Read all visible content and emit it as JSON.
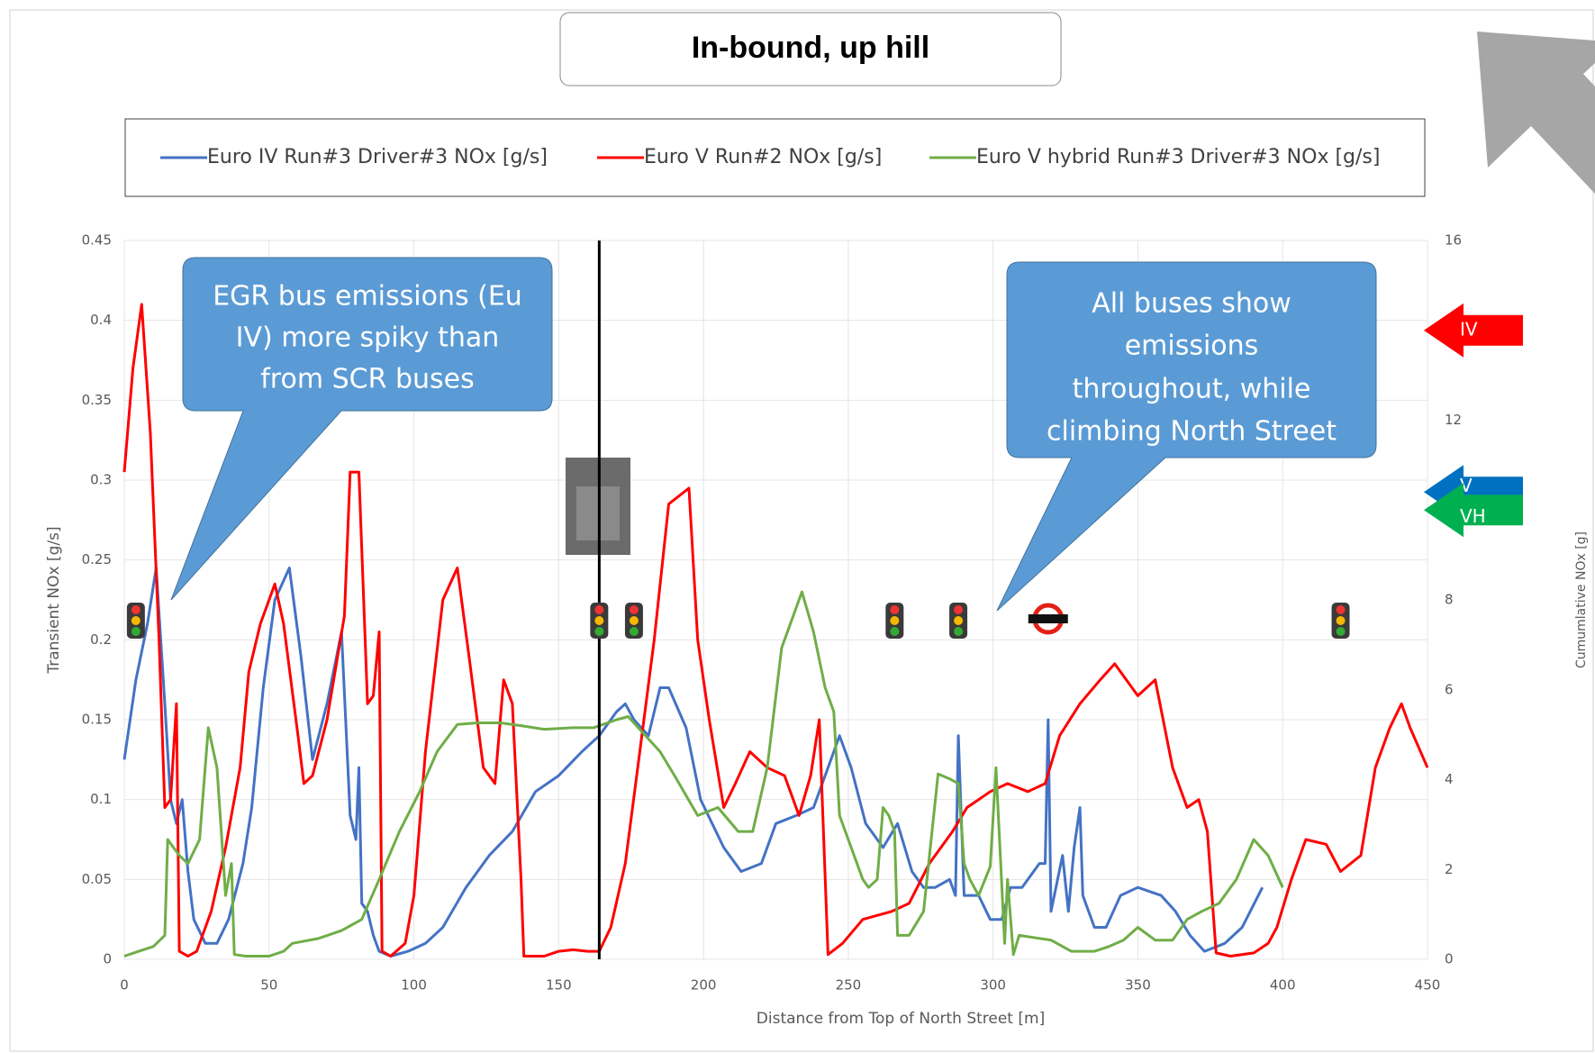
{
  "chart_data": {
    "type": "line",
    "title": "In-bound, up hill",
    "x_label": "Distance from Top of North Street [m]",
    "y_label": "Transient NOx [g/s]",
    "y2_label": "Cumumlative NOx [g]",
    "xlim": [
      0,
      450
    ],
    "xticks": [
      0,
      50,
      100,
      150,
      200,
      250,
      300,
      350,
      400,
      450
    ],
    "ylim": [
      0,
      0.45
    ],
    "yticks": [
      0,
      0.05,
      0.1,
      0.15,
      0.2,
      0.25,
      0.3,
      0.35,
      0.4,
      0.45
    ],
    "y2lim": [
      0,
      16
    ],
    "y2ticks": [
      0,
      2,
      4,
      6,
      8,
      12,
      16
    ],
    "grid": true,
    "series": [
      {
        "name": "Euro IV Run#3 Driver#3 NOx [g/s]",
        "color": "#4472c4",
        "x": [
          0,
          4,
          8,
          11,
          14,
          16,
          18,
          20,
          22,
          24,
          28,
          32,
          36,
          41,
          44,
          48,
          52,
          57,
          61,
          65,
          70,
          75,
          78,
          80,
          81,
          82,
          84,
          86,
          88,
          92,
          98,
          104,
          110,
          118,
          126,
          134,
          142,
          150,
          158,
          164,
          170,
          173,
          176,
          181,
          185,
          188,
          194,
          199,
          207,
          213,
          220,
          225,
          232,
          238,
          243,
          247,
          251,
          256,
          262,
          267,
          272,
          276,
          280,
          285,
          287,
          288,
          290,
          295,
          299,
          303,
          306,
          310,
          316,
          318,
          319,
          320,
          324,
          326,
          328,
          330,
          331,
          335,
          339,
          344,
          350,
          358,
          363,
          368,
          373,
          380,
          386,
          393
        ],
        "values": [
          0.125,
          0.175,
          0.21,
          0.245,
          0.16,
          0.1,
          0.085,
          0.1,
          0.055,
          0.025,
          0.01,
          0.01,
          0.025,
          0.06,
          0.095,
          0.17,
          0.225,
          0.245,
          0.19,
          0.125,
          0.16,
          0.205,
          0.09,
          0.075,
          0.12,
          0.035,
          0.03,
          0.015,
          0.005,
          0.002,
          0.005,
          0.01,
          0.02,
          0.045,
          0.065,
          0.08,
          0.105,
          0.115,
          0.13,
          0.14,
          0.155,
          0.16,
          0.15,
          0.14,
          0.17,
          0.17,
          0.145,
          0.1,
          0.07,
          0.055,
          0.06,
          0.085,
          0.09,
          0.095,
          0.12,
          0.14,
          0.12,
          0.085,
          0.07,
          0.085,
          0.055,
          0.045,
          0.045,
          0.05,
          0.04,
          0.14,
          0.04,
          0.04,
          0.025,
          0.025,
          0.045,
          0.045,
          0.06,
          0.06,
          0.15,
          0.03,
          0.065,
          0.03,
          0.07,
          0.095,
          0.04,
          0.02,
          0.02,
          0.04,
          0.045,
          0.04,
          0.03,
          0.015,
          0.005,
          0.01,
          0.02,
          0.045
        ]
      },
      {
        "name": "Euro V Run#2 NOx [g/s]",
        "color": "#ff0000",
        "x": [
          0,
          3,
          6,
          9,
          12,
          14,
          16,
          18,
          19,
          22,
          25,
          30,
          35,
          40,
          43,
          47,
          52,
          55,
          60,
          62,
          65,
          70,
          76,
          78,
          81,
          84,
          86,
          88,
          89,
          92,
          97,
          100,
          104,
          110,
          115,
          119,
          124,
          128,
          131,
          134,
          137,
          138,
          145,
          150,
          155,
          160,
          164,
          168,
          173,
          178,
          183,
          188,
          195,
          198,
          202,
          207,
          211,
          216,
          222,
          228,
          233,
          237,
          240,
          243,
          248,
          255,
          265,
          271,
          278,
          286,
          291,
          295,
          299,
          305,
          312,
          318,
          323,
          330,
          337,
          342,
          350,
          356,
          362,
          367,
          371,
          374,
          377,
          382,
          390,
          395,
          398,
          403,
          408,
          415,
          420,
          427,
          432,
          437,
          441,
          444,
          450
        ],
        "values": [
          0.305,
          0.37,
          0.41,
          0.33,
          0.2,
          0.095,
          0.1,
          0.16,
          0.005,
          0.002,
          0.005,
          0.03,
          0.07,
          0.12,
          0.18,
          0.21,
          0.235,
          0.21,
          0.14,
          0.11,
          0.115,
          0.15,
          0.215,
          0.305,
          0.305,
          0.16,
          0.165,
          0.205,
          0.005,
          0.002,
          0.01,
          0.04,
          0.13,
          0.225,
          0.245,
          0.19,
          0.12,
          0.11,
          0.175,
          0.16,
          0.05,
          0.002,
          0.002,
          0.005,
          0.006,
          0.005,
          0.005,
          0.02,
          0.06,
          0.13,
          0.2,
          0.285,
          0.295,
          0.2,
          0.15,
          0.095,
          0.11,
          0.13,
          0.12,
          0.115,
          0.09,
          0.115,
          0.15,
          0.003,
          0.01,
          0.025,
          0.03,
          0.035,
          0.06,
          0.08,
          0.095,
          0.1,
          0.105,
          0.11,
          0.105,
          0.11,
          0.14,
          0.16,
          0.175,
          0.185,
          0.165,
          0.175,
          0.12,
          0.095,
          0.1,
          0.08,
          0.004,
          0.002,
          0.004,
          0.01,
          0.02,
          0.05,
          0.075,
          0.072,
          0.055,
          0.065,
          0.12,
          0.145,
          0.16,
          0.145,
          0.12
        ]
      },
      {
        "name": "Euro V hybrid Run#3 Driver#3 NOx [g/s]",
        "color": "#70ad47",
        "x": [
          0,
          5,
          10,
          14,
          15,
          19,
          22,
          26,
          29,
          32,
          35,
          37,
          38,
          42,
          50,
          55,
          58,
          67,
          75,
          82,
          88,
          95,
          102,
          108,
          115,
          122,
          130,
          138,
          145,
          155,
          162,
          170,
          174,
          180,
          185,
          190,
          198,
          205,
          212,
          217,
          222,
          227,
          234,
          238,
          242,
          245,
          247,
          251,
          255,
          257,
          260,
          262,
          264,
          266,
          267,
          271,
          276,
          281,
          285,
          288,
          290,
          292,
          295,
          299,
          301,
          304,
          305,
          307,
          309,
          320,
          327,
          335,
          340,
          345,
          350,
          356,
          362,
          367,
          372,
          378,
          384,
          390,
          395,
          400
        ],
        "values": [
          0.002,
          0.005,
          0.008,
          0.015,
          0.075,
          0.065,
          0.06,
          0.075,
          0.145,
          0.12,
          0.04,
          0.06,
          0.003,
          0.002,
          0.002,
          0.005,
          0.01,
          0.013,
          0.018,
          0.025,
          0.05,
          0.08,
          0.105,
          0.13,
          0.147,
          0.148,
          0.148,
          0.146,
          0.144,
          0.145,
          0.145,
          0.15,
          0.152,
          0.14,
          0.13,
          0.115,
          0.09,
          0.095,
          0.08,
          0.08,
          0.12,
          0.195,
          0.23,
          0.205,
          0.17,
          0.155,
          0.09,
          0.07,
          0.05,
          0.045,
          0.05,
          0.095,
          0.09,
          0.08,
          0.015,
          0.015,
          0.03,
          0.116,
          0.113,
          0.11,
          0.06,
          0.05,
          0.04,
          0.058,
          0.12,
          0.01,
          0.05,
          0.003,
          0.015,
          0.012,
          0.005,
          0.005,
          0.008,
          0.012,
          0.02,
          0.012,
          0.012,
          0.025,
          0.03,
          0.035,
          0.05,
          0.075,
          0.065,
          0.045
        ]
      }
    ],
    "vline_x": 164,
    "traffic_lights_x": [
      4,
      164,
      176,
      266,
      288,
      420
    ],
    "bus_stop_x": 319,
    "arrows": [
      {
        "label": "IV",
        "value": 14,
        "color": "#ff0000"
      },
      {
        "label": "V",
        "value": 10.4,
        "color": "#0070c0"
      },
      {
        "label": "VH",
        "value": 10,
        "color": "#00b050"
      }
    ],
    "callouts": [
      {
        "lines": [
          "EGR bus emissions (Eu",
          "IV) more spiky than",
          "from SCR buses"
        ]
      },
      {
        "lines": [
          "All buses show",
          "emissions",
          "throughout, while",
          "climbing North Street"
        ]
      }
    ]
  }
}
